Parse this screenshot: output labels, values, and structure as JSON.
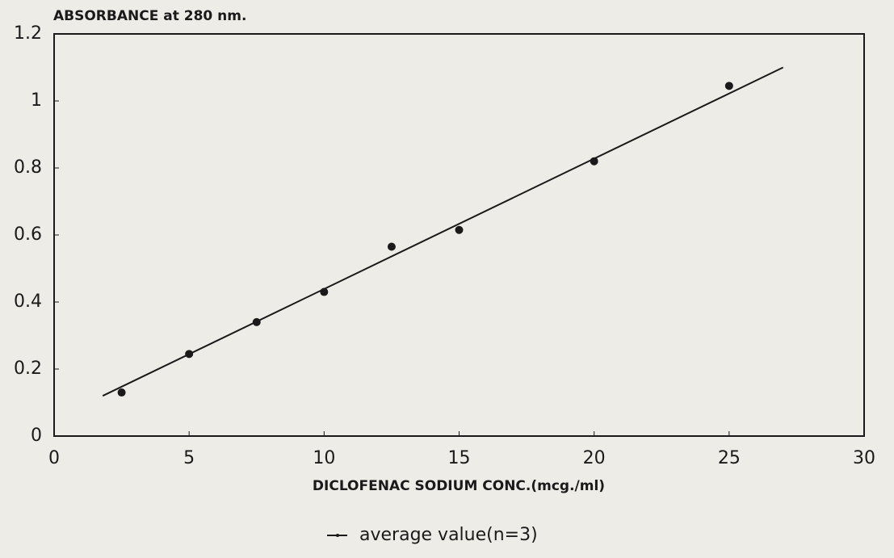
{
  "chart_data": {
    "type": "scatter",
    "title": "ABSORBANCE at 280 nm.",
    "x_label": "DICLOFENAC SODIUM CONC.(mcg./ml)",
    "series": [
      {
        "name": "average value(n=3)",
        "color": "#1a1a1a",
        "mode": "markers",
        "x": [
          2.5,
          5,
          7.5,
          10,
          12.5,
          15,
          20,
          25
        ],
        "values": [
          0.13,
          0.245,
          0.34,
          0.43,
          0.565,
          0.615,
          0.82,
          1.045
        ]
      },
      {
        "color": "#1a1a1a",
        "mode": "line",
        "x": [
          1.8,
          27
        ],
        "values": [
          0.12,
          1.1
        ]
      }
    ],
    "xlim": [
      0,
      30
    ],
    "xticks": [
      0,
      5,
      10,
      15,
      20,
      25,
      30
    ],
    "ylim": [
      0,
      1.2
    ],
    "yticks": [
      0,
      0.2,
      0.4,
      0.6,
      0.8,
      1,
      1.2
    ],
    "grid": false,
    "legend": "bottom"
  }
}
